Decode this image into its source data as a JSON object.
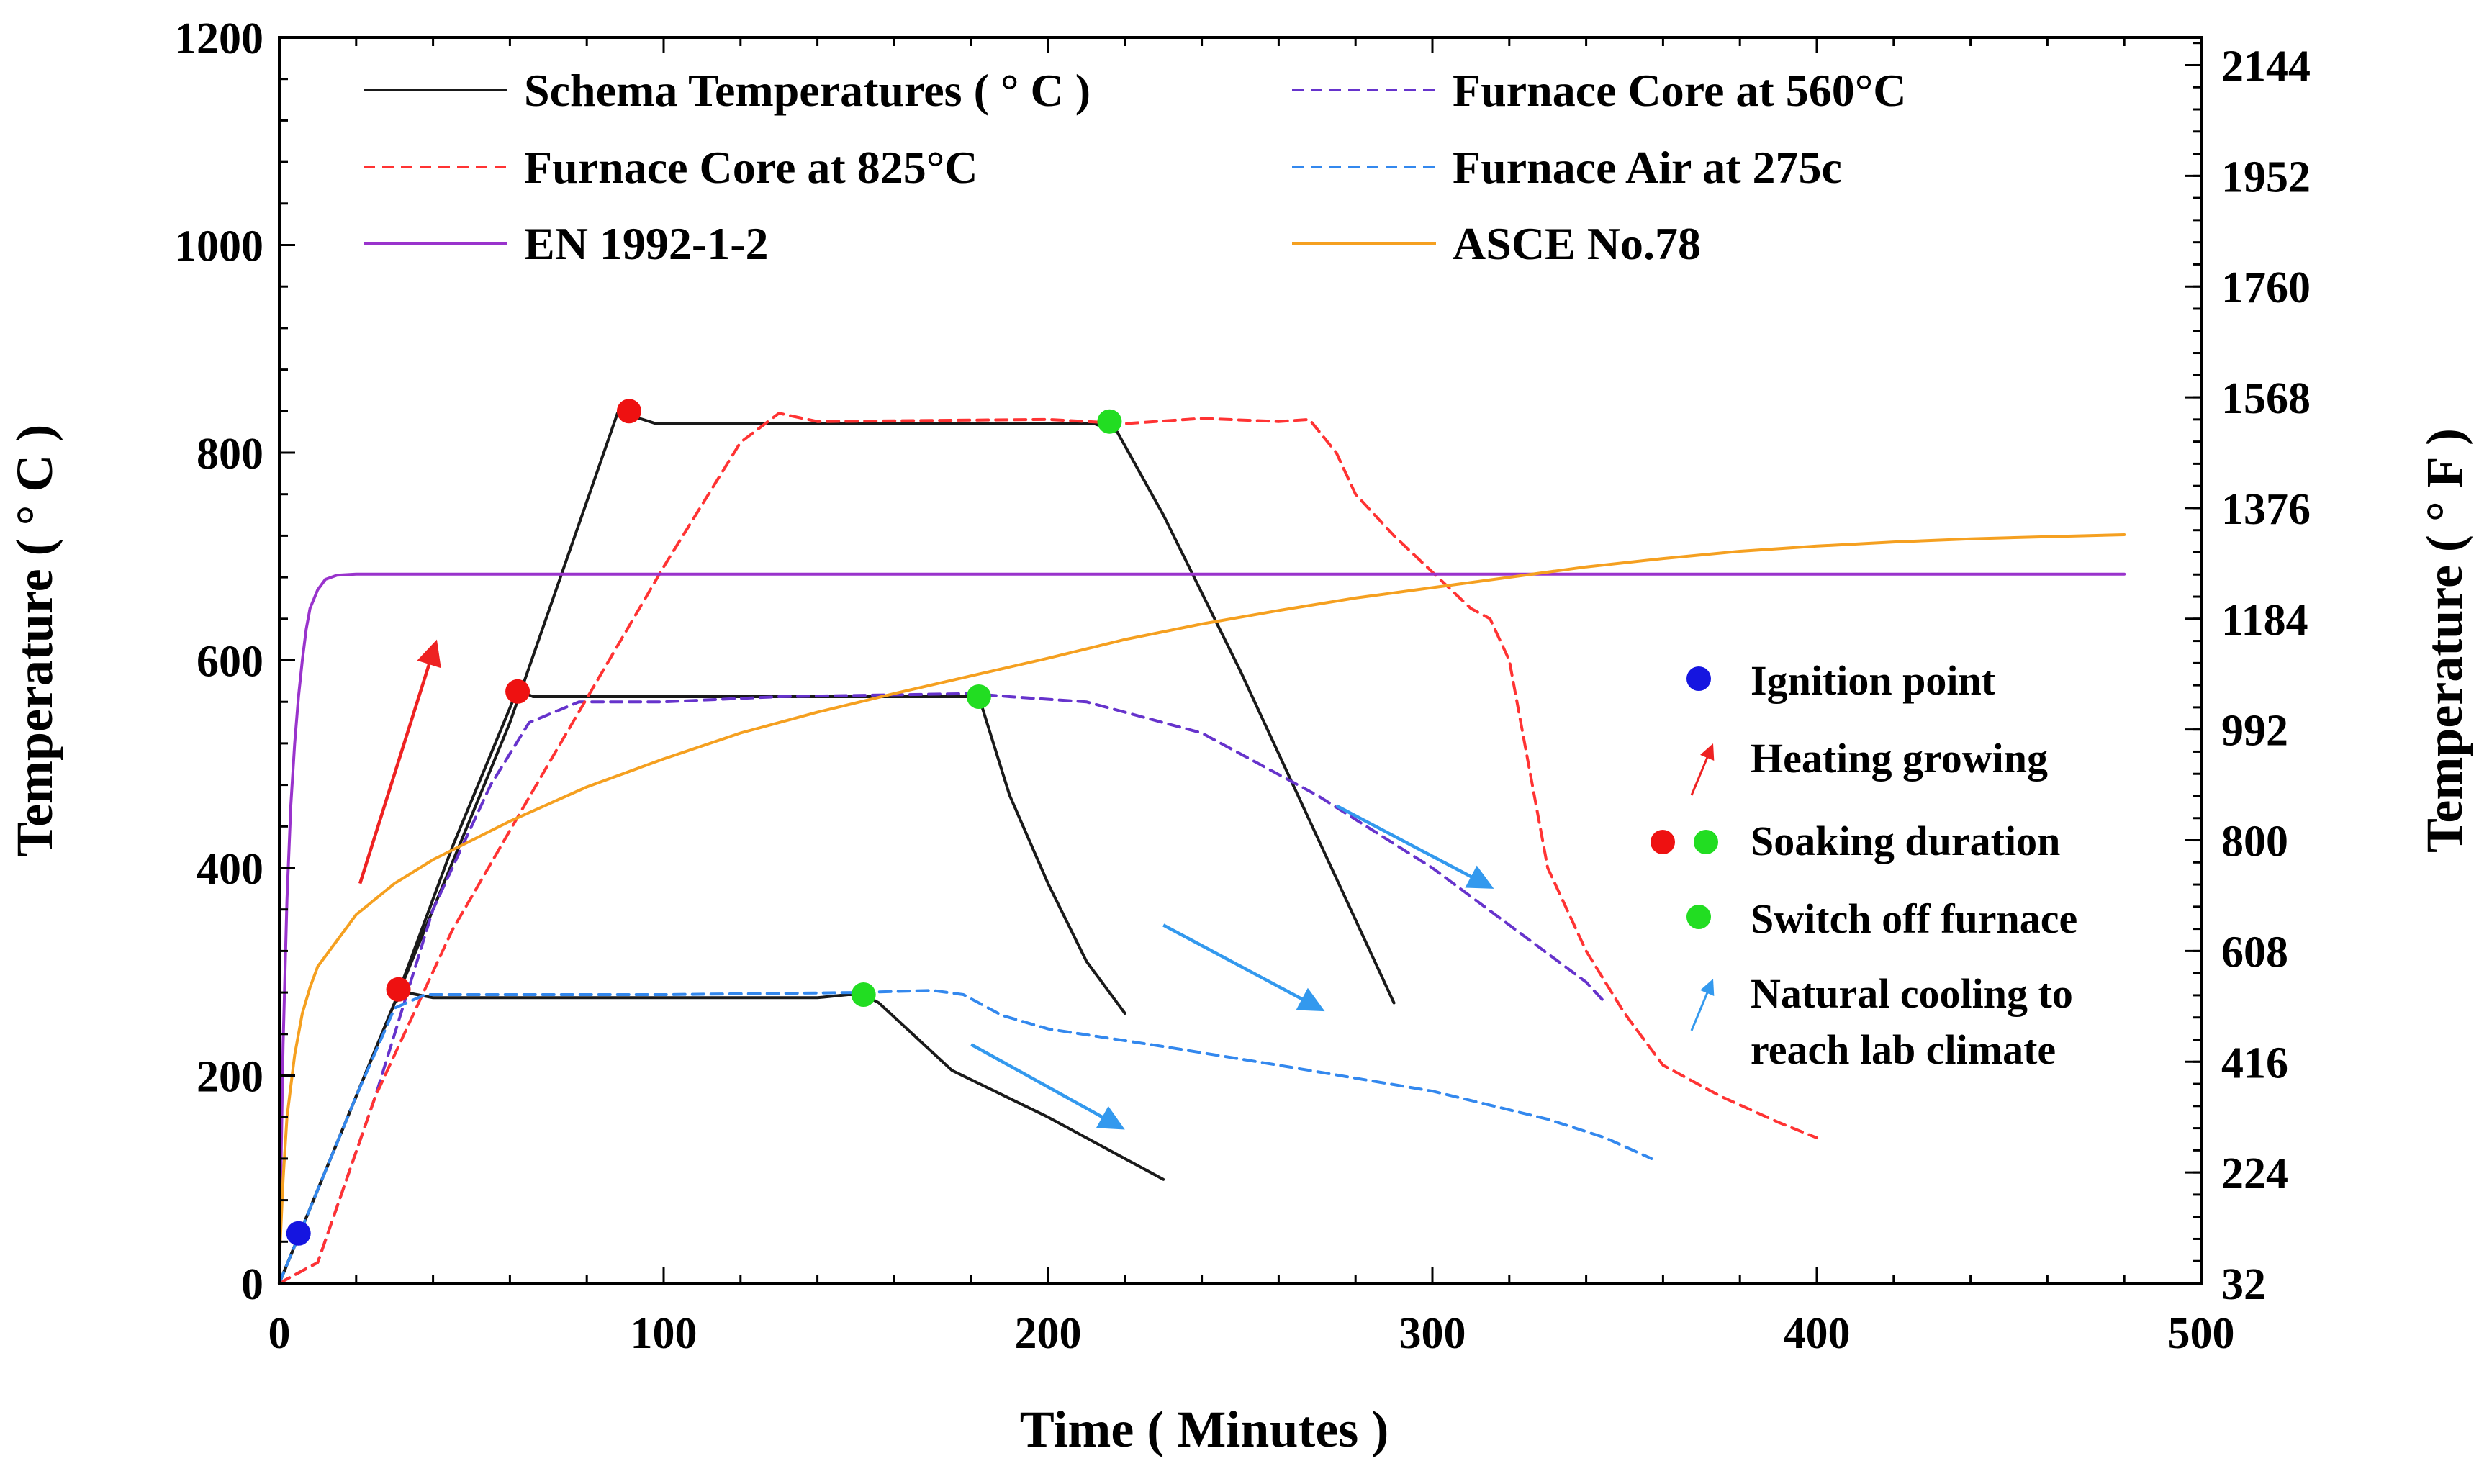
{
  "chart_data": {
    "type": "line",
    "xlabel": "Time ( Minutes )",
    "ylabel_left": "Temperature ( ° C )",
    "ylabel_right": "Temperature ( ° F )",
    "xlim": [
      0,
      500
    ],
    "ylim": [
      0,
      1200
    ],
    "ylim_right": [
      32,
      2192
    ],
    "x_ticks": [
      0,
      100,
      200,
      300,
      400,
      500
    ],
    "y_ticks": [
      0,
      200,
      400,
      600,
      800,
      1000,
      1200
    ],
    "y_right_ticks": [
      32,
      224,
      416,
      608,
      800,
      992,
      1184,
      1376,
      1568,
      1760,
      1952,
      2144
    ],
    "grid": false,
    "legend_position": "top",
    "series": [
      {
        "name": "Schema Temperatures ( ° C )",
        "color": "#1a1a1a",
        "dash": "solid",
        "segments": [
          [
            [
              0,
              0
            ],
            [
              5,
              45
            ],
            [
              30,
              270
            ],
            [
              33,
              280
            ],
            [
              40,
              275
            ],
            [
              100,
              275
            ],
            [
              140,
              275
            ],
            [
              148,
              278
            ],
            [
              152,
              278
            ],
            [
              156,
              270
            ],
            [
              175,
              205
            ],
            [
              200,
              160
            ],
            [
              230,
              100
            ]
          ],
          [
            [
              0,
              0
            ],
            [
              5,
              45
            ],
            [
              30,
              270
            ],
            [
              45,
              420
            ],
            [
              62,
              572
            ],
            [
              66,
              565
            ],
            [
              100,
              565
            ],
            [
              140,
              565
            ],
            [
              175,
              565
            ],
            [
              182,
              565
            ],
            [
              190,
              470
            ],
            [
              200,
              385
            ],
            [
              210,
              310
            ],
            [
              220,
              260
            ]
          ],
          [
            [
              0,
              0
            ],
            [
              5,
              45
            ],
            [
              30,
              270
            ],
            [
              60,
              540
            ],
            [
              88,
              838
            ],
            [
              92,
              835
            ],
            [
              98,
              828
            ],
            [
              150,
              828
            ],
            [
              200,
              828
            ],
            [
              212,
              828
            ],
            [
              218,
              820
            ],
            [
              230,
              740
            ],
            [
              250,
              590
            ],
            [
              270,
              430
            ],
            [
              290,
              270
            ]
          ]
        ]
      },
      {
        "name": "Furnace Core at 560°C",
        "color": "#6633cc",
        "dash": "dashed",
        "segments": [
          [
            [
              0,
              0
            ],
            [
              10,
              20
            ],
            [
              25,
              180
            ],
            [
              40,
              360
            ],
            [
              55,
              480
            ],
            [
              65,
              540
            ],
            [
              78,
              560
            ],
            [
              100,
              560
            ],
            [
              130,
              565
            ],
            [
              180,
              568
            ],
            [
              190,
              565
            ],
            [
              210,
              560
            ],
            [
              240,
              530
            ],
            [
              270,
              470
            ],
            [
              300,
              400
            ],
            [
              320,
              345
            ],
            [
              340,
              290
            ],
            [
              345,
              270
            ]
          ]
        ]
      },
      {
        "name": "Furnace Core at 825°C",
        "color": "#ff3333",
        "dash": "dashed",
        "segments": [
          [
            [
              0,
              0
            ],
            [
              10,
              20
            ],
            [
              25,
              180
            ],
            [
              45,
              340
            ],
            [
              70,
              500
            ],
            [
              100,
              690
            ],
            [
              120,
              810
            ],
            [
              130,
              838
            ],
            [
              140,
              830
            ],
            [
              200,
              832
            ],
            [
              220,
              828
            ],
            [
              240,
              833
            ],
            [
              260,
              830
            ],
            [
              268,
              832
            ],
            [
              275,
              800
            ],
            [
              280,
              760
            ],
            [
              290,
              720
            ],
            [
              300,
              685
            ],
            [
              310,
              650
            ],
            [
              315,
              640
            ],
            [
              320,
              600
            ],
            [
              325,
              500
            ],
            [
              330,
              400
            ],
            [
              340,
              320
            ],
            [
              350,
              260
            ],
            [
              360,
              210
            ],
            [
              375,
              180
            ],
            [
              390,
              155
            ],
            [
              400,
              140
            ]
          ]
        ]
      },
      {
        "name": "Furnace Air at 275c",
        "color": "#3388ee",
        "dash": "dashed",
        "segments": [
          [
            [
              0,
              0
            ],
            [
              5,
              45
            ],
            [
              20,
              180
            ],
            [
              30,
              265
            ],
            [
              38,
              278
            ],
            [
              100,
              278
            ],
            [
              150,
              280
            ],
            [
              170,
              282
            ],
            [
              178,
              278
            ],
            [
              188,
              258
            ],
            [
              200,
              245
            ],
            [
              230,
              228
            ],
            [
              260,
              210
            ],
            [
              300,
              185
            ],
            [
              330,
              158
            ],
            [
              345,
              140
            ],
            [
              357,
              120
            ]
          ]
        ]
      },
      {
        "name": "EN 1992-1-2",
        "color": "#9933cc",
        "dash": "solid",
        "segments": [
          [
            [
              0,
              20
            ],
            [
              1,
              230
            ],
            [
              2,
              370
            ],
            [
              3,
              460
            ],
            [
              4,
              520
            ],
            [
              5,
              565
            ],
            [
              6,
              600
            ],
            [
              7,
              630
            ],
            [
              8,
              650
            ],
            [
              10,
              668
            ],
            [
              12,
              678
            ],
            [
              15,
              682
            ],
            [
              20,
              683
            ],
            [
              100,
              683
            ],
            [
              200,
              683
            ],
            [
              300,
              683
            ],
            [
              400,
              683
            ],
            [
              480,
              683
            ]
          ]
        ]
      },
      {
        "name": "ASCE No.78",
        "color": "#f5a020",
        "dash": "solid",
        "segments": [
          [
            [
              0,
              20
            ],
            [
              1,
              100
            ],
            [
              2,
              160
            ],
            [
              4,
              220
            ],
            [
              6,
              260
            ],
            [
              8,
              285
            ],
            [
              10,
              305
            ],
            [
              15,
              330
            ],
            [
              20,
              355
            ],
            [
              30,
              385
            ],
            [
              40,
              408
            ],
            [
              60,
              445
            ],
            [
              80,
              478
            ],
            [
              100,
              505
            ],
            [
              120,
              530
            ],
            [
              140,
              550
            ],
            [
              160,
              568
            ],
            [
              180,
              585
            ],
            [
              200,
              602
            ],
            [
              220,
              620
            ],
            [
              240,
              635
            ],
            [
              260,
              648
            ],
            [
              280,
              660
            ],
            [
              300,
              670
            ],
            [
              320,
              680
            ],
            [
              340,
              690
            ],
            [
              360,
              698
            ],
            [
              380,
              705
            ],
            [
              400,
              710
            ],
            [
              420,
              714
            ],
            [
              440,
              717
            ],
            [
              460,
              719
            ],
            [
              480,
              721
            ]
          ]
        ]
      }
    ],
    "markers": [
      {
        "x": 5,
        "y": 48,
        "color": "#1515e0",
        "role": "ignition"
      },
      {
        "x": 31,
        "y": 283,
        "color": "#ee1111",
        "role": "soak-start"
      },
      {
        "x": 62,
        "y": 570,
        "color": "#ee1111",
        "role": "soak-start"
      },
      {
        "x": 91,
        "y": 840,
        "color": "#ee1111",
        "role": "soak-start"
      },
      {
        "x": 152,
        "y": 278,
        "color": "#22dd22",
        "role": "switch-off"
      },
      {
        "x": 182,
        "y": 565,
        "color": "#22dd22",
        "role": "switch-off"
      },
      {
        "x": 216,
        "y": 830,
        "color": "#22dd22",
        "role": "switch-off"
      }
    ],
    "arrows": [
      {
        "from": [
          21,
          385
        ],
        "to": [
          41,
          620
        ],
        "color": "#ee2222"
      },
      {
        "from": [
          180,
          230
        ],
        "to": [
          220,
          148
        ],
        "color": "#3399ee"
      },
      {
        "from": [
          230,
          345
        ],
        "to": [
          272,
          262
        ],
        "color": "#3399ee"
      },
      {
        "from": [
          275,
          460
        ],
        "to": [
          316,
          380
        ],
        "color": "#3399ee"
      }
    ],
    "annotations": [
      {
        "label": "Ignition point",
        "color": "#1515e0",
        "symbol": "dot"
      },
      {
        "label": "Heating growing",
        "color": "#ee2222",
        "symbol": "arrow"
      },
      {
        "label": "Soaking duration",
        "color": "#ee1111",
        "color2": "#22dd22",
        "symbol": "two-dots"
      },
      {
        "label": "Switch off furnace",
        "color": "#22dd22",
        "symbol": "dot"
      },
      {
        "label": "Natural cooling to",
        "label2": "reach lab climate",
        "color": "#3399ee",
        "symbol": "arrow"
      }
    ]
  }
}
